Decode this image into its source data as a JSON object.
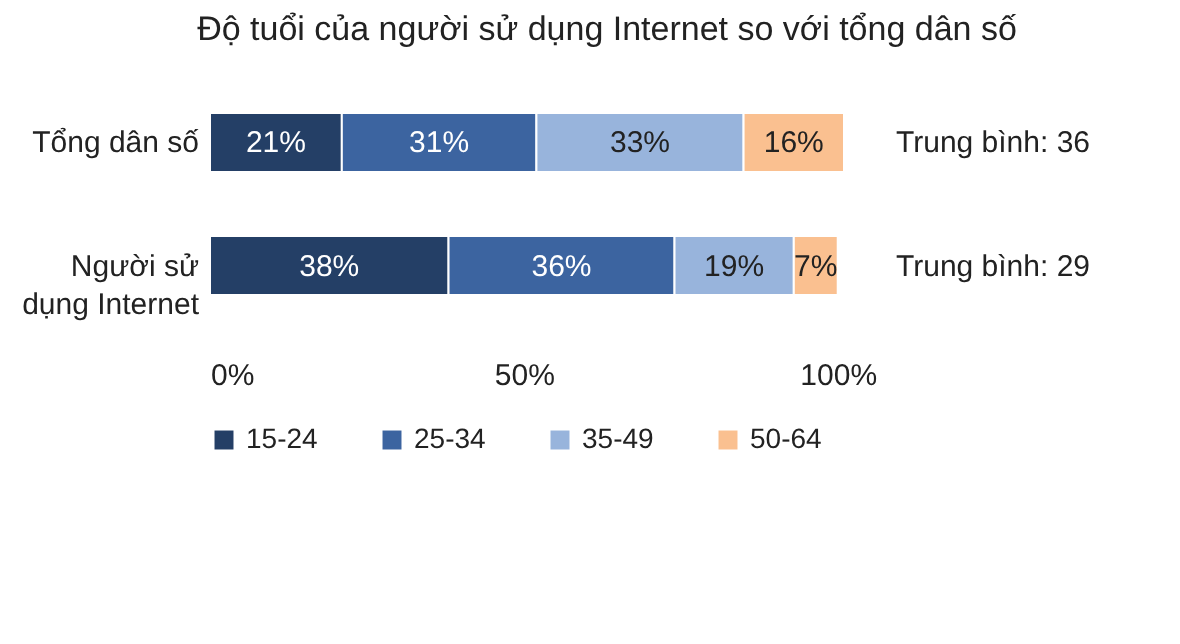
{
  "chart_data": {
    "type": "bar",
    "orientation": "horizontal",
    "stacked": true,
    "title": "Độ tuổi của người sử dụng Internet so với tổng dân số",
    "categories": [
      "Tổng dân số",
      "Người sử dụng Internet"
    ],
    "series": [
      {
        "name": "15-24",
        "color": "#243f66",
        "values": [
          21,
          38
        ],
        "value_labels": [
          "21%",
          "38%"
        ]
      },
      {
        "name": "25-34",
        "color": "#3c64a0",
        "values": [
          31,
          36
        ],
        "value_labels": [
          "31%",
          "36%"
        ]
      },
      {
        "name": "35-49",
        "color": "#98b4dc",
        "values": [
          33,
          19
        ],
        "value_labels": [
          "33%",
          "19%"
        ]
      },
      {
        "name": "50-64",
        "color": "#fac090",
        "values": [
          16,
          7
        ],
        "value_labels": [
          "16%",
          "7%"
        ]
      }
    ],
    "xlim": [
      0,
      101
    ],
    "xticks": [
      {
        "value": 0,
        "label": "0%"
      },
      {
        "value": 50,
        "label": "50%"
      },
      {
        "value": 100,
        "label": "100%"
      }
    ],
    "legend": "bottom",
    "grid": false,
    "annotations": [
      "Trung bình: 36",
      "Trung bình: 29"
    ]
  }
}
